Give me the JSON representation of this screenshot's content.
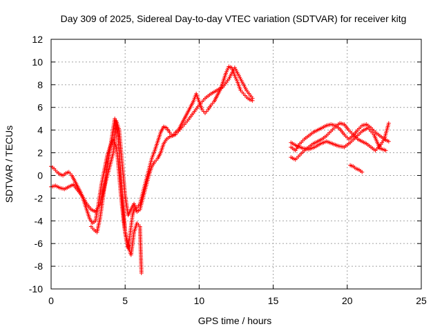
{
  "chart_data": {
    "type": "scatter",
    "title": "Day 309 of 2025, Sidereal Day-to-day VTEC variation (SDTVAR) for receiver kitg",
    "xlabel": "GPS time / hours",
    "ylabel": "SDTVAR / TECUs",
    "xlim": [
      0,
      25
    ],
    "ylim": [
      -10,
      12
    ],
    "xticks": [
      0,
      5,
      10,
      15,
      20,
      25
    ],
    "yticks": [
      -10,
      -8,
      -6,
      -4,
      -2,
      0,
      2,
      4,
      6,
      8,
      10,
      12
    ],
    "grid": true,
    "marker": "plus",
    "color": "#ff0000",
    "series": [
      {
        "x": [
          0.0,
          0.2,
          0.4,
          0.6,
          0.8,
          1.0,
          1.2,
          1.4,
          1.6,
          1.8,
          2.0,
          2.2,
          2.4,
          2.6,
          2.8,
          3.0,
          3.2,
          3.4,
          3.6,
          3.8,
          4.0,
          4.2,
          4.4,
          4.5,
          4.6,
          4.7,
          4.8,
          4.9,
          5.0,
          5.1,
          5.2,
          5.3,
          5.4,
          5.5,
          5.6,
          5.8,
          6.0,
          6.2,
          6.4,
          6.6,
          6.8,
          7.0,
          7.2,
          7.4,
          7.6,
          7.8,
          8.0,
          8.2,
          8.4,
          8.6,
          8.8,
          9.0,
          9.2,
          9.4,
          9.6,
          9.8,
          10.0,
          10.2,
          10.4,
          10.6,
          10.8,
          11.0,
          11.2,
          11.4,
          11.6,
          11.8,
          12.0,
          12.2,
          12.4,
          12.6,
          12.8,
          13.0,
          13.2,
          13.4,
          13.6
        ],
        "y": [
          0.8,
          0.6,
          0.3,
          0.1,
          0.0,
          0.2,
          0.3,
          0.0,
          -0.5,
          -1.0,
          -1.5,
          -2.2,
          -3.0,
          -3.8,
          -4.2,
          -4.0,
          -2.5,
          -0.8,
          0.5,
          1.8,
          2.6,
          3.2,
          2.5,
          1.5,
          0.0,
          -1.5,
          -2.8,
          -4.0,
          -5.0,
          -5.8,
          -6.4,
          -5.5,
          -4.5,
          -3.5,
          -3.0,
          -2.8,
          -2.5,
          -1.5,
          -0.5,
          0.5,
          1.5,
          2.2,
          3.0,
          3.8,
          4.3,
          4.2,
          3.8,
          3.5,
          3.8,
          4.0,
          4.5,
          5.0,
          5.5,
          6.0,
          6.5,
          7.2,
          6.5,
          5.8,
          5.5,
          5.8,
          6.2,
          6.5,
          7.0,
          7.5,
          8.2,
          9.0,
          9.6,
          9.5,
          8.8,
          8.2,
          7.5,
          7.2,
          6.9,
          6.7,
          6.6
        ]
      },
      {
        "x": [
          0.0,
          0.3,
          0.6,
          0.9,
          1.2,
          1.5,
          1.8,
          2.1,
          2.4,
          2.7,
          3.0,
          3.3,
          3.6,
          3.9,
          4.2,
          4.4,
          4.6,
          4.8,
          5.0,
          5.2,
          5.4,
          5.6,
          5.8,
          6.0,
          6.2,
          6.4,
          6.6,
          6.8,
          7.0,
          7.2,
          7.4,
          7.6,
          7.8,
          8.0,
          8.4,
          8.8,
          9.2,
          9.6,
          10.0,
          10.4,
          10.8,
          11.2,
          11.6,
          12.0,
          12.4,
          12.8,
          13.2,
          13.6
        ],
        "y": [
          -1.0,
          -0.9,
          -1.1,
          -1.2,
          -1.0,
          -0.8,
          -1.3,
          -1.8,
          -2.5,
          -3.0,
          -3.2,
          -2.5,
          -1.0,
          0.5,
          2.0,
          4.8,
          4.0,
          1.0,
          -1.8,
          -3.5,
          -3.0,
          -2.5,
          -3.2,
          -3.0,
          -2.0,
          -1.0,
          0.0,
          0.8,
          1.2,
          1.5,
          2.0,
          2.8,
          3.2,
          3.4,
          3.6,
          4.2,
          4.8,
          5.5,
          6.2,
          6.8,
          7.2,
          7.5,
          7.8,
          8.5,
          9.5,
          8.5,
          7.5,
          6.8
        ]
      },
      {
        "x": [
          2.7,
          2.9,
          3.1,
          3.3,
          3.5,
          3.7,
          4.3,
          4.5,
          5.0,
          5.2,
          5.4,
          5.6,
          5.8,
          6.0,
          6.1
        ],
        "y": [
          -4.5,
          -4.8,
          -5.0,
          -3.8,
          -2.0,
          0.0,
          5.0,
          3.8,
          -5.0,
          -6.2,
          -7.0,
          -5.0,
          -4.2,
          -4.5,
          -8.6
        ]
      },
      {
        "x": [
          16.2,
          16.5,
          16.8,
          17.1,
          17.4,
          17.7,
          18.0,
          18.3,
          18.6,
          18.9,
          19.2,
          19.5,
          19.8,
          20.1,
          20.4,
          20.7,
          21.0,
          21.3,
          21.6,
          21.9,
          22.2,
          22.5,
          22.8
        ],
        "y": [
          2.5,
          2.2,
          2.8,
          3.2,
          3.5,
          3.8,
          4.0,
          4.2,
          4.4,
          4.5,
          4.4,
          4.1,
          3.6,
          3.2,
          3.5,
          4.0,
          4.4,
          4.5,
          4.2,
          3.8,
          3.5,
          3.2,
          3.0
        ]
      },
      {
        "x": [
          16.2,
          16.5,
          16.8,
          17.1,
          17.4,
          17.7,
          18.0,
          18.3,
          18.6,
          18.9,
          19.2,
          19.5,
          19.8,
          20.1,
          20.4,
          20.7,
          21.0,
          21.3,
          21.6,
          21.9,
          22.2,
          22.5,
          22.8
        ],
        "y": [
          1.6,
          1.4,
          1.8,
          2.2,
          2.5,
          2.8,
          3.0,
          3.2,
          3.5,
          3.9,
          4.3,
          4.6,
          4.5,
          4.0,
          3.6,
          3.2,
          3.0,
          2.8,
          2.5,
          2.2,
          2.6,
          3.2,
          4.6
        ]
      },
      {
        "x": [
          16.2,
          16.6,
          17.0,
          17.4,
          17.8,
          18.2,
          18.6,
          19.0,
          19.4,
          19.8,
          20.2,
          20.6,
          21.0,
          21.4,
          21.8,
          22.2,
          22.6
        ],
        "y": [
          2.9,
          2.6,
          2.4,
          2.3,
          2.5,
          2.8,
          3.0,
          2.8,
          2.6,
          2.5,
          2.9,
          3.4,
          3.9,
          4.2,
          3.6,
          2.4,
          2.2
        ]
      },
      {
        "x": [
          20.2,
          20.4,
          20.6,
          20.8,
          21.0
        ],
        "y": [
          0.9,
          0.8,
          0.6,
          0.5,
          0.3
        ]
      }
    ]
  }
}
